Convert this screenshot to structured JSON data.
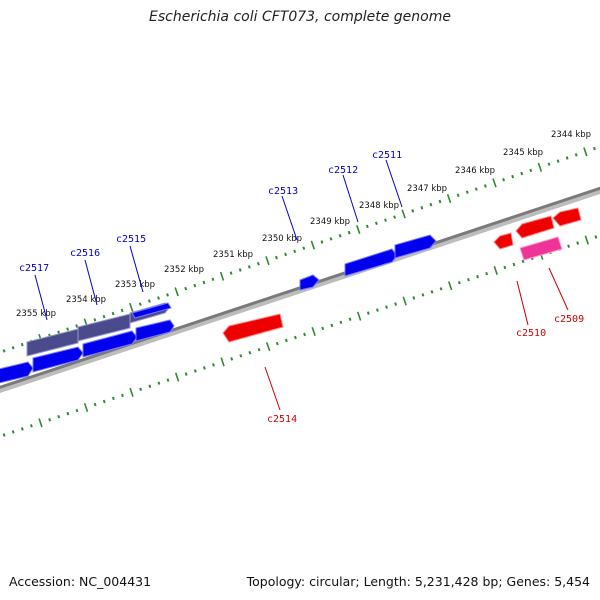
{
  "title": "Escherichia coli CFT073, complete genome",
  "footer": {
    "accession": "Accession: NC_004431",
    "summary": "Topology: circular; Length: 5,231,428 bp; Genes: 5,454"
  },
  "colors": {
    "backbone": "#777777",
    "tick": "#2e8b2e",
    "forward_gene": "#0000ee",
    "forward_gene_dark": "#4a4a8c",
    "reverse_gene": "#ee0000",
    "reverse_gene_pink": "#ee3399"
  },
  "scale_labels": [
    "2344 kbp",
    "2345 kbp",
    "2346 kbp",
    "2347 kbp",
    "2348 kbp",
    "2349 kbp",
    "2350 kbp",
    "2351 kbp",
    "2352 kbp",
    "2353 kbp",
    "2354 kbp",
    "2355 kbp"
  ],
  "gene_labels": {
    "forward": [
      "c2511",
      "c2512",
      "c2513",
      "c2515",
      "c2516",
      "c2517"
    ],
    "reverse": [
      "c2509",
      "c2510",
      "c2514"
    ]
  }
}
